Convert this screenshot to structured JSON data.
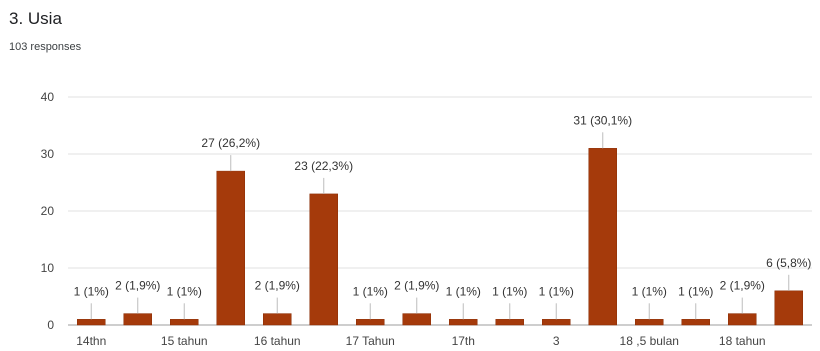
{
  "question": {
    "title": "3. Usia",
    "responses": "103 responses"
  },
  "colors": {
    "bar": "#a53a0b",
    "bar_stroke": "#8a2e06",
    "gridline": "#e0e0e0",
    "axis": "#9e9e9e",
    "whisker": "#bdbdbd"
  },
  "chart_data": {
    "type": "bar",
    "title": "",
    "xlabel": "",
    "ylabel": "",
    "ylim": [
      0,
      40
    ],
    "yticks": [
      0,
      10,
      20,
      30,
      40
    ],
    "grid": true,
    "x_tick_labels": [
      "14thn",
      "15 tahun",
      "16 tahun",
      "17 Tahun",
      "17th",
      "3",
      "18 ,5 bulan",
      "18 tahun"
    ],
    "values": [
      1,
      2,
      1,
      27,
      2,
      23,
      1,
      2,
      1,
      1,
      1,
      31,
      1,
      1,
      2,
      6
    ],
    "data_labels": [
      "1 (1%)",
      "2 (1,9%)",
      "1 (1%)",
      "27 (26,2%)",
      "2 (1,9%)",
      "23 (22,3%)",
      "1 (1%)",
      "2 (1,9%)",
      "1 (1%)",
      "1 (1%)",
      "1 (1%)",
      "31 (30,1%)",
      "1 (1%)",
      "1 (1%)",
      "2 (1,9%)",
      "6 (5,8%)"
    ]
  }
}
